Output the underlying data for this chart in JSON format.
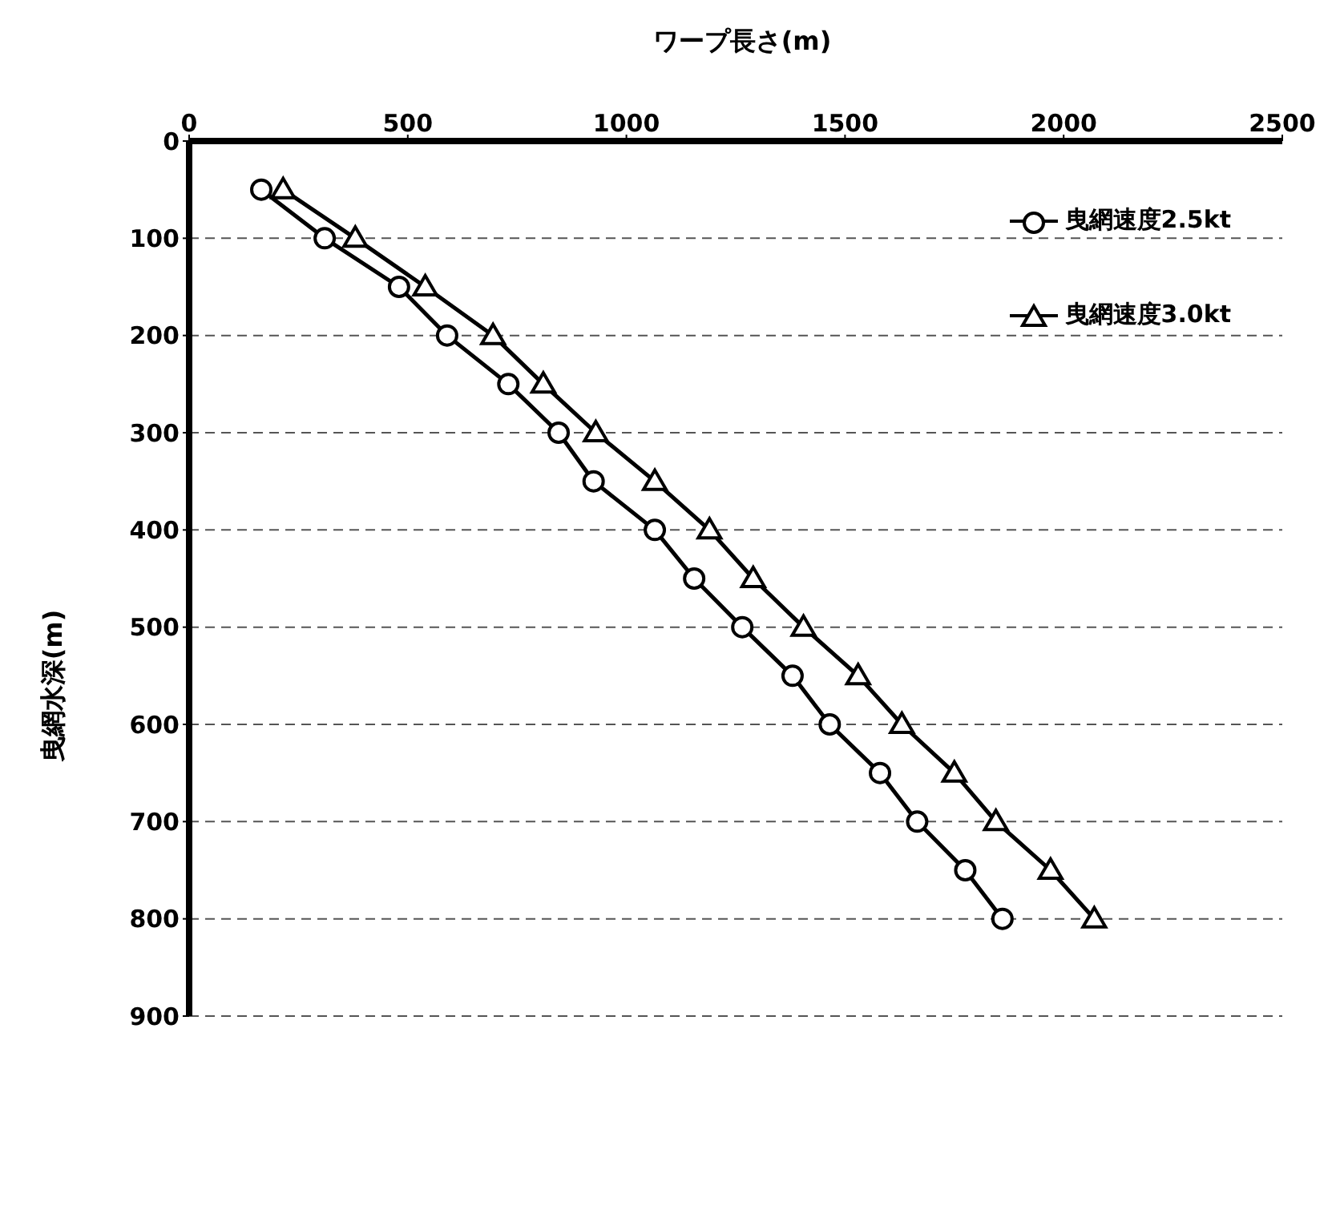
{
  "chart_data": {
    "type": "line",
    "xlabel": "ワープ長さ(m)",
    "ylabel": "曳網水深(m)",
    "xlim": [
      0,
      2500
    ],
    "xticks": [
      0,
      500,
      1000,
      1500,
      2000,
      2500
    ],
    "ylim": [
      900,
      0
    ],
    "yticks": [
      0,
      100,
      200,
      300,
      400,
      500,
      600,
      700,
      800,
      900
    ],
    "grid": "y",
    "legend": "top right",
    "line_style": "solid",
    "series": [
      {
        "name": "曳網速度2.5kt",
        "color": "#000000",
        "marker": "circle",
        "x": [
          165,
          310,
          480,
          590,
          730,
          845,
          925,
          1065,
          1155,
          1265,
          1380,
          1465,
          1580,
          1665,
          1775,
          1860
        ],
        "values": [
          50,
          100,
          150,
          200,
          250,
          300,
          350,
          400,
          450,
          500,
          550,
          600,
          650,
          700,
          750,
          800
        ]
      },
      {
        "name": "曳網速度3.0kt",
        "color": "#000000",
        "marker": "triangle",
        "x": [
          215,
          380,
          540,
          695,
          810,
          930,
          1065,
          1190,
          1290,
          1405,
          1530,
          1630,
          1750,
          1845,
          1970,
          2070
        ],
        "values": [
          50,
          100,
          150,
          200,
          250,
          300,
          350,
          400,
          450,
          500,
          550,
          600,
          650,
          700,
          750,
          800
        ]
      }
    ]
  }
}
